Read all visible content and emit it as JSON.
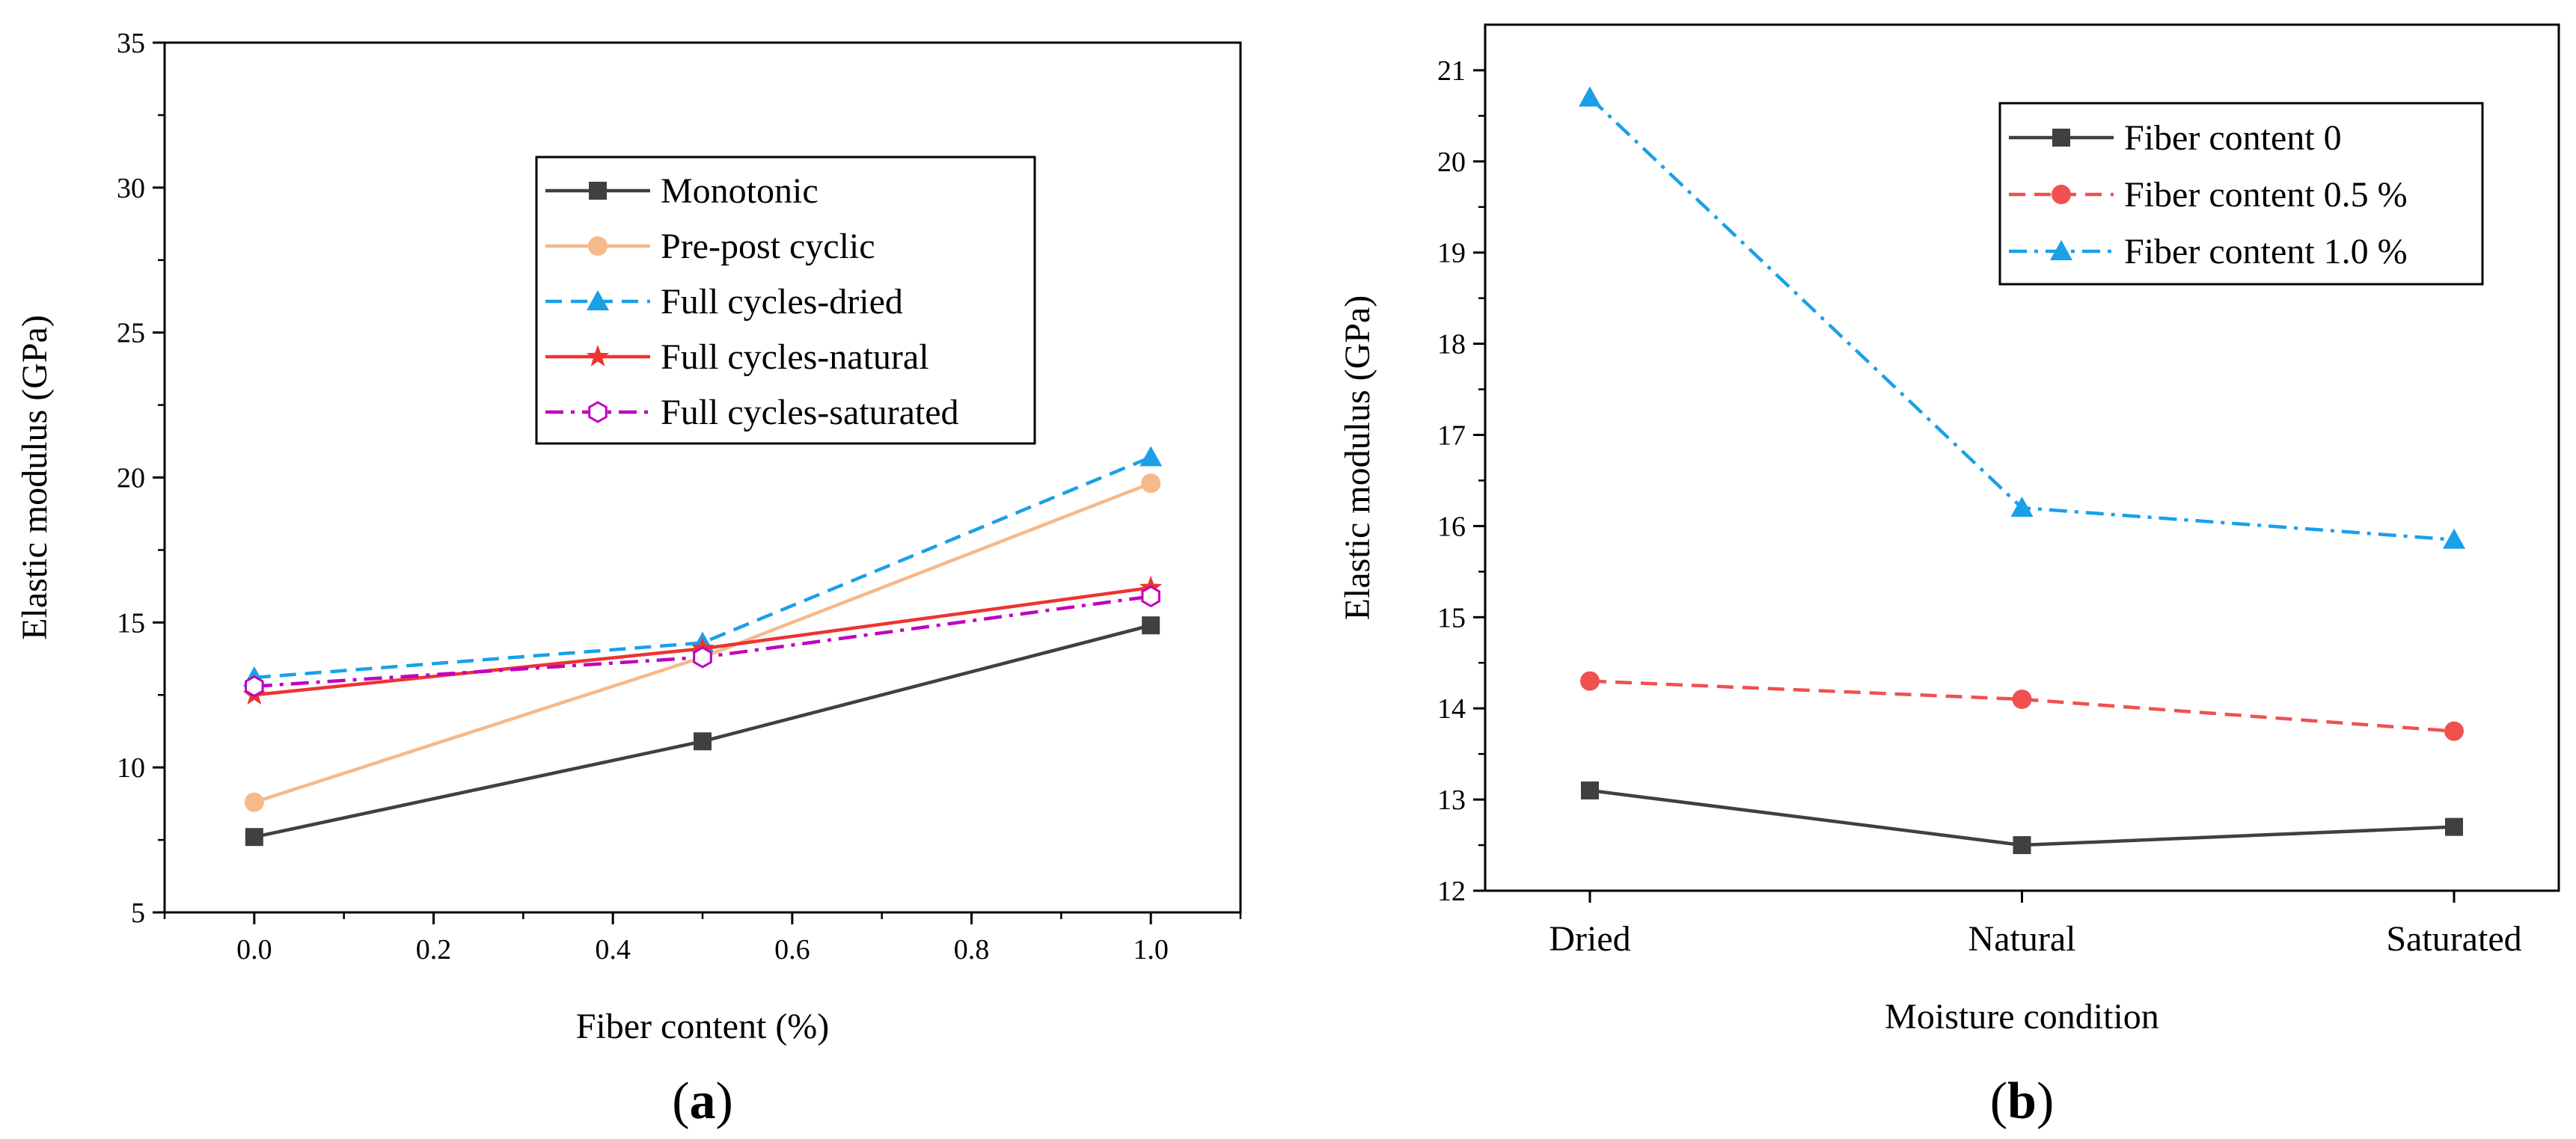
{
  "chart_data": [
    {
      "type": "line",
      "panel": "(a)",
      "panel_letter": "a",
      "xlabel": "Fiber content (%)",
      "ylabel": "Elastic modulus (GPa)",
      "xlim": [
        -0.1,
        1.1
      ],
      "ylim": [
        5,
        35
      ],
      "xticks": [
        0.0,
        0.2,
        0.4,
        0.6,
        0.8,
        1.0
      ],
      "xtick_labels": [
        "0.0",
        "0.2",
        "0.4",
        "0.6",
        "0.8",
        "1.0"
      ],
      "yticks": [
        5,
        10,
        15,
        20,
        25,
        30,
        35
      ],
      "ytick_labels": [
        "5",
        "10",
        "15",
        "20",
        "25",
        "30",
        "35"
      ],
      "legend_position": "upper-center",
      "x": [
        0.0,
        0.5,
        1.0
      ],
      "series": [
        {
          "name": "Monotonic",
          "values": [
            7.6,
            10.9,
            14.9
          ],
          "color": "#404040",
          "dash": "solid",
          "marker": "square"
        },
        {
          "name": "Pre-post cyclic",
          "values": [
            8.8,
            13.8,
            19.8
          ],
          "color": "#f5b98a",
          "dash": "solid",
          "marker": "circle"
        },
        {
          "name": "Full cycles-dried",
          "values": [
            13.1,
            14.3,
            20.7
          ],
          "color": "#1aa0e8",
          "dash": "dashed",
          "marker": "triangle"
        },
        {
          "name": "Full cycles-natural",
          "values": [
            12.5,
            14.1,
            16.2
          ],
          "color": "#ee3333",
          "dash": "solid",
          "marker": "star"
        },
        {
          "name": "Full cycles-saturated",
          "values": [
            12.8,
            13.8,
            15.9
          ],
          "color": "#c000c0",
          "dash": "dashdot",
          "marker": "hexagon"
        }
      ]
    },
    {
      "type": "line",
      "panel": "(b)",
      "panel_letter": "b",
      "xlabel": "Moisture condition",
      "ylabel": "Elastic modulus (GPa)",
      "categories": [
        "Dried",
        "Natural",
        "Saturated"
      ],
      "ylim": [
        12,
        21.5
      ],
      "yticks": [
        12,
        13,
        14,
        15,
        16,
        17,
        18,
        19,
        20,
        21
      ],
      "ytick_labels": [
        "12",
        "13",
        "14",
        "15",
        "16",
        "17",
        "18",
        "19",
        "20",
        "21"
      ],
      "legend_position": "top-right",
      "series": [
        {
          "name": "Fiber content 0",
          "values": [
            13.1,
            12.5,
            12.7
          ],
          "color": "#404040",
          "dash": "solid",
          "marker": "square"
        },
        {
          "name": "Fiber content 0.5 %",
          "values": [
            14.3,
            14.1,
            13.75
          ],
          "color": "#f05050",
          "dash": "dashed",
          "marker": "circle"
        },
        {
          "name": "Fiber content 1.0 %",
          "values": [
            20.7,
            16.2,
            15.85
          ],
          "color": "#1aa0e8",
          "dash": "dashdot",
          "marker": "triangle"
        }
      ]
    }
  ]
}
